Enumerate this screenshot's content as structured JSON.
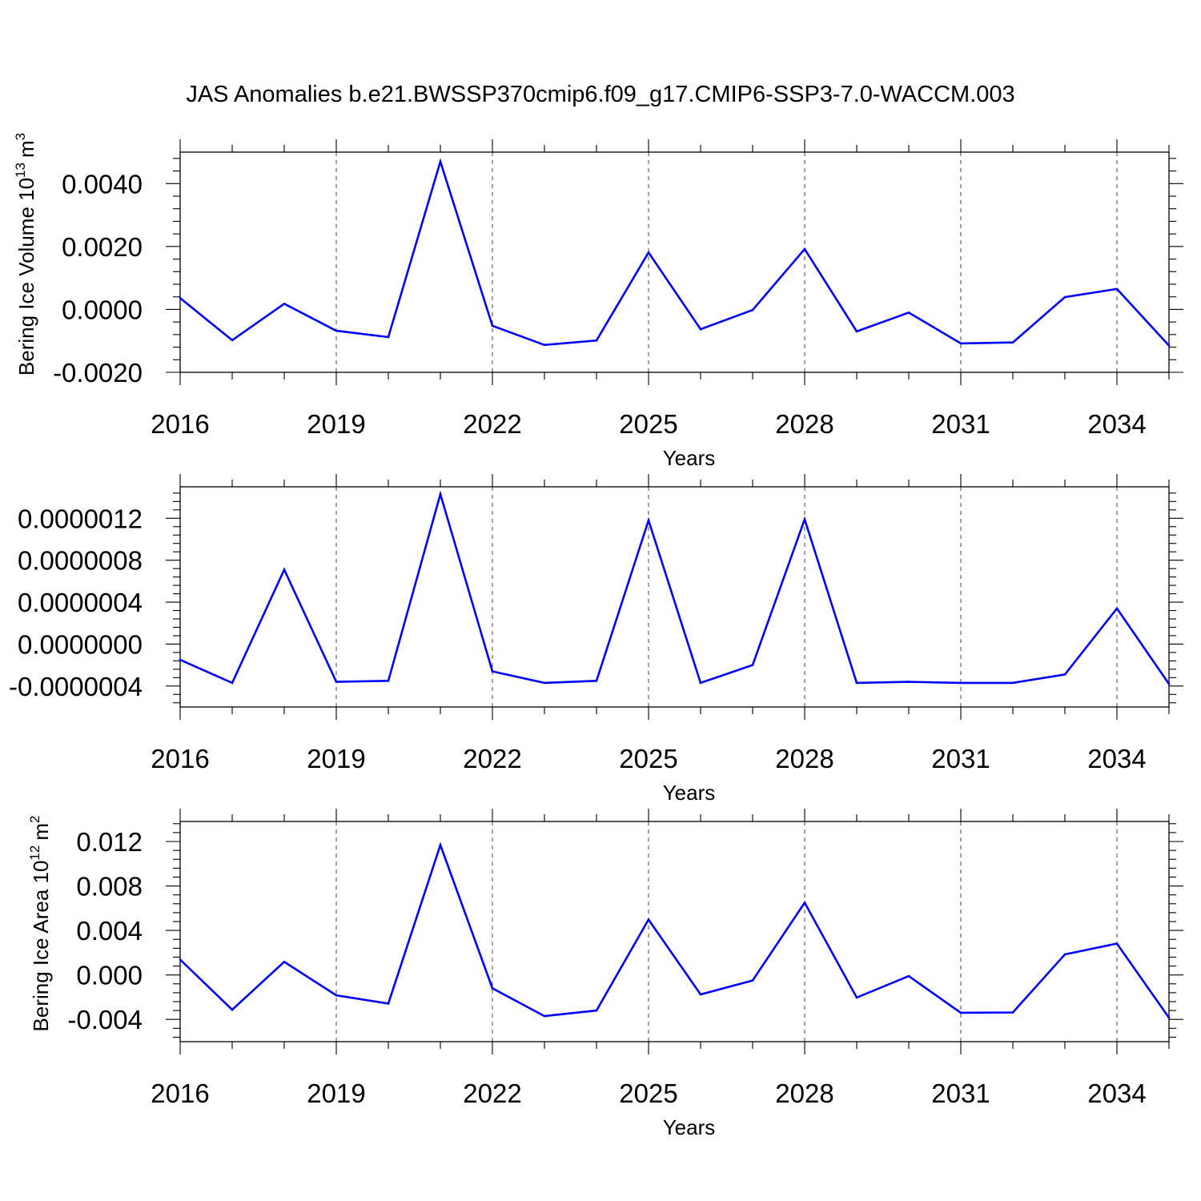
{
  "title": "JAS Anomalies b.e21.BWSSP370cmip6.f09_g17.CMIP6-SSP3-7.0-WACCM.003",
  "line_color": "#0000ff",
  "chart_data": [
    {
      "type": "line",
      "ylabel": "Bering Ice Volume 10",
      "ylabel_sup": "13",
      "ylabel_unit": "m",
      "ylabel_unit_sup": "3",
      "xlabel": "Years",
      "xlim": [
        2016,
        2035
      ],
      "ylim": [
        -0.002,
        0.005
      ],
      "yticks": [
        -0.002,
        0.0,
        0.002,
        0.004
      ],
      "ytick_labels": [
        "-0.0020",
        "0.0000",
        "0.0020",
        "0.0040"
      ],
      "yminor_step": 0.0004,
      "xticks": [
        2016,
        2019,
        2022,
        2025,
        2028,
        2031,
        2034
      ],
      "xtick_labels": [
        "2016",
        "2019",
        "2022",
        "2025",
        "2028",
        "2031",
        "2034"
      ],
      "x": [
        2016,
        2017,
        2018,
        2019,
        2020,
        2021,
        2022,
        2023,
        2024,
        2025,
        2026,
        2027,
        2028,
        2029,
        2030,
        2031,
        2032,
        2033,
        2034,
        2035
      ],
      "values": [
        0.00036,
        -0.00098,
        0.00018,
        -0.00068,
        -0.00088,
        0.0047,
        -0.00052,
        -0.00113,
        -0.00099,
        0.00181,
        -0.00063,
        -2e-05,
        0.00192,
        -0.0007,
        -0.0001,
        -0.00108,
        -0.00105,
        0.00039,
        0.00065,
        -0.00115
      ]
    },
    {
      "type": "line",
      "ylabel": "",
      "xlabel": "Years",
      "xlim": [
        2016,
        2035
      ],
      "ylim": [
        -6e-07,
        1.5e-06
      ],
      "yticks": [
        -4e-07,
        0.0,
        4e-07,
        8e-07,
        1.2e-06
      ],
      "ytick_labels": [
        "-0.0000004",
        "0.0000000",
        "0.0000004",
        "0.0000008",
        "0.0000012"
      ],
      "yminor_step": 8e-08,
      "xticks": [
        2016,
        2019,
        2022,
        2025,
        2028,
        2031,
        2034
      ],
      "xtick_labels": [
        "2016",
        "2019",
        "2022",
        "2025",
        "2028",
        "2031",
        "2034"
      ],
      "x": [
        2016,
        2017,
        2018,
        2019,
        2020,
        2021,
        2022,
        2023,
        2024,
        2025,
        2026,
        2027,
        2028,
        2029,
        2030,
        2031,
        2032,
        2033,
        2034,
        2035
      ],
      "values": [
        -1.5e-07,
        -3.7e-07,
        7.1e-07,
        -3.6e-07,
        -3.5e-07,
        1.43e-06,
        -2.6e-07,
        -3.7e-07,
        -3.5e-07,
        1.18e-06,
        -3.7e-07,
        -2e-07,
        1.19e-06,
        -3.7e-07,
        -3.6e-07,
        -3.7e-07,
        -3.7e-07,
        -2.9e-07,
        3.4e-07,
        -3.8e-07
      ]
    },
    {
      "type": "line",
      "ylabel": "Bering Ice Area 10",
      "ylabel_sup": "12",
      "ylabel_unit": "m",
      "ylabel_unit_sup": "2",
      "xlabel": "Years",
      "xlim": [
        2016,
        2035
      ],
      "ylim": [
        -0.006,
        0.0138
      ],
      "yticks": [
        -0.004,
        0.0,
        0.004,
        0.008,
        0.012
      ],
      "ytick_labels": [
        "-0.004",
        "0.000",
        "0.004",
        "0.008",
        "0.012"
      ],
      "yminor_step": 0.0008,
      "xticks": [
        2016,
        2019,
        2022,
        2025,
        2028,
        2031,
        2034
      ],
      "xtick_labels": [
        "2016",
        "2019",
        "2022",
        "2025",
        "2028",
        "2031",
        "2034"
      ],
      "x": [
        2016,
        2017,
        2018,
        2019,
        2020,
        2021,
        2022,
        2023,
        2024,
        2025,
        2026,
        2027,
        2028,
        2029,
        2030,
        2031,
        2032,
        2033,
        2034,
        2035
      ],
      "values": [
        0.00138,
        -0.00313,
        0.00118,
        -0.00183,
        -0.00257,
        0.01168,
        -0.0012,
        -0.0037,
        -0.0032,
        0.00498,
        -0.00175,
        -0.0005,
        0.0065,
        -0.00203,
        -0.0001,
        -0.0034,
        -0.00337,
        0.00185,
        0.00282,
        -0.00385
      ]
    }
  ]
}
